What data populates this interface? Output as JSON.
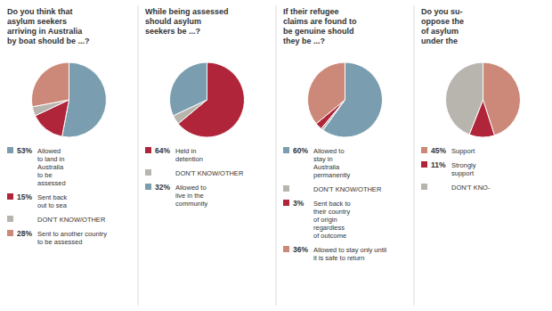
{
  "chart_data": [
    {
      "type": "pie",
      "title": "Do you think that\nasylum seekers\narriving in Australia\nby boat should be ...?",
      "categories": [
        "Allowed\nto land in\nAustralia\nto be\nassessed",
        "Sent back\nout to sea",
        "DON'T KNOW/OTHER",
        "Sent to another country\nto be assessed"
      ],
      "values": [
        53,
        15,
        4,
        28
      ],
      "value_labels": [
        "53%",
        "15%",
        null,
        "28%"
      ],
      "colors": [
        "#7a9eb0",
        "#b0253a",
        "#b8b4ae",
        "#cc8878"
      ],
      "data_labels": true
    },
    {
      "type": "pie",
      "title": "While being assessed\nshould asylum\nseekers be ...?",
      "categories": [
        "Held in\ndetention",
        "DON'T KNOW/OTHER",
        "Allowed to\nlive in the\ncommunity"
      ],
      "values": [
        64,
        4,
        32
      ],
      "value_labels": [
        "64%",
        null,
        "32%"
      ],
      "colors": [
        "#b0253a",
        "#b8b4ae",
        "#7a9eb0"
      ],
      "data_labels": true
    },
    {
      "type": "pie",
      "title": "If their refugee\nclaims are found to\nbe genuine should\nthey be ...?",
      "categories": [
        "Allowed to\nstay in\nAustralia\npermanently",
        "DON'T KNOW/OTHER",
        "Sent back to\ntheir country\nof origin\nregardless\nof outcome",
        "Allowed to stay only until\nit is safe to return"
      ],
      "values": [
        60,
        1,
        3,
        36
      ],
      "value_labels": [
        "60%",
        null,
        "3%",
        "36%"
      ],
      "colors": [
        "#7a9eb0",
        "#b8b4ae",
        "#b0253a",
        "#cc8878"
      ],
      "data_labels": true
    },
    {
      "type": "pie",
      "title": "Do you su-\noppose the\nof asylum\nunder the",
      "categories": [
        "Support",
        "Strongly\nsupport",
        "DON'T KNO-"
      ],
      "values": [
        45,
        11,
        44
      ],
      "value_labels": [
        "45%",
        "11%",
        null
      ],
      "colors": [
        "#cc8878",
        "#b0253a",
        "#b8b4ae"
      ],
      "data_labels": true
    }
  ]
}
